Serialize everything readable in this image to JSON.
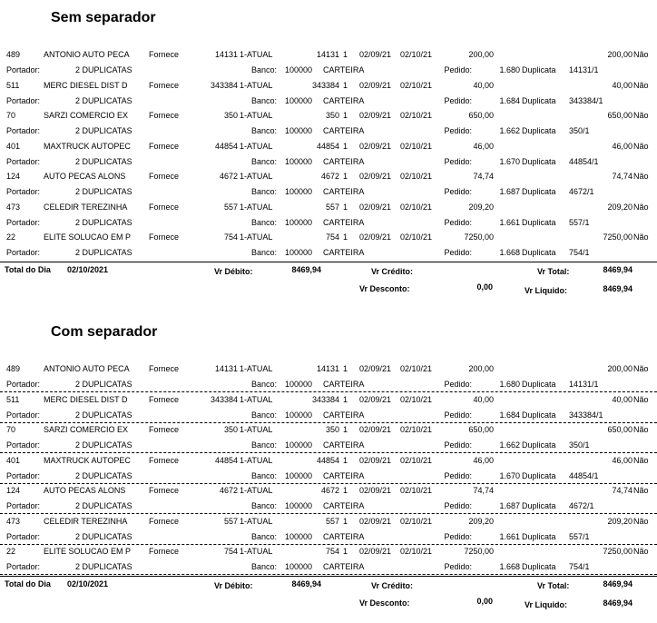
{
  "reports": [
    {
      "title": "Sem separador"
    },
    {
      "title": "Com separador"
    }
  ],
  "labels": {
    "portador": "Portador:",
    "banco": "Banco:",
    "pedido": "Pedido:",
    "duplicata": "Duplicata",
    "total_dia": "Total do Dia",
    "vr_debito": "Vr Débito:",
    "vr_credito": "Vr Crédito:",
    "vr_total": "Vr Total:",
    "vr_desconto": "Vr Desconto:",
    "vr_liquido": "Vr Liquido:"
  },
  "records": [
    {
      "cod": "489",
      "nome": "ANTONIO AUTO PECA",
      "tipo": "Fornece",
      "doc": "14131",
      "cond": "1-ATUAL",
      "doc2": "14131",
      "parc": "1",
      "emissao": "02/09/21",
      "venc": "02/10/21",
      "valor": "200,00",
      "valor2": "200,00",
      "pago": "Não",
      "portador": "2  DUPLICATAS",
      "banco_cod": "100000",
      "banco_nome": "CARTEIRA",
      "pedido": "1.680",
      "duplicata": "14131/1"
    },
    {
      "cod": "511",
      "nome": "MERC DIESEL DIST D",
      "tipo": "Fornece",
      "doc": "343384",
      "cond": "1-ATUAL",
      "doc2": "343384",
      "parc": "1",
      "emissao": "02/09/21",
      "venc": "02/10/21",
      "valor": "40,00",
      "valor2": "40,00",
      "pago": "Não",
      "portador": "2  DUPLICATAS",
      "banco_cod": "100000",
      "banco_nome": "CARTEIRA",
      "pedido": "1.684",
      "duplicata": "343384/1"
    },
    {
      "cod": "70",
      "nome": "SARZI COMERCIO EX",
      "tipo": "Fornece",
      "doc": "350",
      "cond": "1-ATUAL",
      "doc2": "350",
      "parc": "1",
      "emissao": "02/09/21",
      "venc": "02/10/21",
      "valor": "650,00",
      "valor2": "650,00",
      "pago": "Não",
      "portador": "2  DUPLICATAS",
      "banco_cod": "100000",
      "banco_nome": "CARTEIRA",
      "pedido": "1.662",
      "duplicata": "350/1"
    },
    {
      "cod": "401",
      "nome": "MAXTRUCK AUTOPEC",
      "tipo": "Fornece",
      "doc": "44854",
      "cond": "1-ATUAL",
      "doc2": "44854",
      "parc": "1",
      "emissao": "02/09/21",
      "venc": "02/10/21",
      "valor": "46,00",
      "valor2": "46,00",
      "pago": "Não",
      "portador": "2  DUPLICATAS",
      "banco_cod": "100000",
      "banco_nome": "CARTEIRA",
      "pedido": "1.670",
      "duplicata": "44854/1"
    },
    {
      "cod": "124",
      "nome": "AUTO PECAS ALONS",
      "tipo": "Fornece",
      "doc": "4672",
      "cond": "1-ATUAL",
      "doc2": "4672",
      "parc": "1",
      "emissao": "02/09/21",
      "venc": "02/10/21",
      "valor": "74,74",
      "valor2": "74,74",
      "pago": "Não",
      "portador": "2  DUPLICATAS",
      "banco_cod": "100000",
      "banco_nome": "CARTEIRA",
      "pedido": "1.687",
      "duplicata": "4672/1"
    },
    {
      "cod": "473",
      "nome": "CELEDIR TEREZINHA",
      "tipo": "Fornece",
      "doc": "557",
      "cond": "1-ATUAL",
      "doc2": "557",
      "parc": "1",
      "emissao": "02/09/21",
      "venc": "02/10/21",
      "valor": "209,20",
      "valor2": "209,20",
      "pago": "Não",
      "portador": "2  DUPLICATAS",
      "banco_cod": "100000",
      "banco_nome": "CARTEIRA",
      "pedido": "1.661",
      "duplicata": "557/1"
    },
    {
      "cod": "22",
      "nome": "ELITE SOLUCAO EM P",
      "tipo": "Fornece",
      "doc": "754",
      "cond": "1-ATUAL",
      "doc2": "754",
      "parc": "1",
      "emissao": "02/09/21",
      "venc": "02/10/21",
      "valor": "7250,00",
      "valor2": "7250,00",
      "pago": "Não",
      "portador": "2  DUPLICATAS",
      "banco_cod": "100000",
      "banco_nome": "CARTEIRA",
      "pedido": "1.668",
      "duplicata": "754/1"
    }
  ],
  "totals": {
    "data": "02/10/2021",
    "vr_debito": "8469,94",
    "vr_credito": "",
    "vr_total": "8469,94",
    "vr_desconto": "0,00",
    "vr_liquido": "8469,94"
  }
}
